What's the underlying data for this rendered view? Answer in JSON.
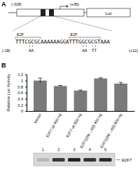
{
  "panel_a": {
    "label": "A",
    "start": "(-318)",
    "end": "(+36)",
    "reporter": "Luc",
    "site_labels": [
      "E2F",
      "E2F"
    ],
    "sequence": "TTTCGCGCAAAAAAGGATTTGGCGCGTAAA",
    "mutations": [
      "AA",
      "AA",
      "TT"
    ],
    "seq_start": "(-18)",
    "seq_end": "(+12)"
  },
  "chart_data": {
    "type": "bar",
    "panel_label": "B",
    "y_label": "Relative Luc Activity",
    "categories": [
      "Vector",
      "E2F7 wt 400 ng",
      "E2F7 wt 800 ng",
      "E2F7(DN→AS) 400 ng",
      "E2F7(DN→AS) 800 ng"
    ],
    "values": [
      1.0,
      0.82,
      0.67,
      1.07,
      0.9
    ],
    "errors": [
      0.08,
      0.02,
      0.02,
      0.02,
      0.04
    ],
    "color": "#7a7a7a",
    "ylim": [
      0,
      1.2
    ],
    "yticks": [
      0,
      0.2,
      0.4,
      0.6,
      0.8,
      1,
      1.2
    ]
  },
  "blot": {
    "lanes": [
      "1",
      "2",
      "3",
      "4",
      "5"
    ],
    "protein": "E2F7"
  }
}
